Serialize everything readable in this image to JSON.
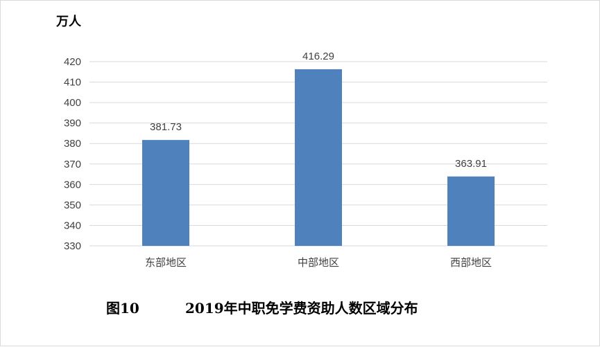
{
  "chart_data": {
    "type": "bar",
    "unit_label": "万人",
    "categories": [
      "东部地区",
      "中部地区",
      "西部地区"
    ],
    "values": [
      381.73,
      416.29,
      363.91
    ],
    "value_labels": [
      "381.73",
      "416.29",
      "363.91"
    ],
    "ylim": [
      330,
      420
    ],
    "yticks": [
      330,
      340,
      350,
      360,
      370,
      380,
      390,
      400,
      410,
      420
    ],
    "grid": true,
    "bar_color": "#4f81bd",
    "grid_color": "#d9d9d9"
  },
  "caption": {
    "figure_no": "图10",
    "title": "2019年中职免学费资助人数区域分布"
  }
}
